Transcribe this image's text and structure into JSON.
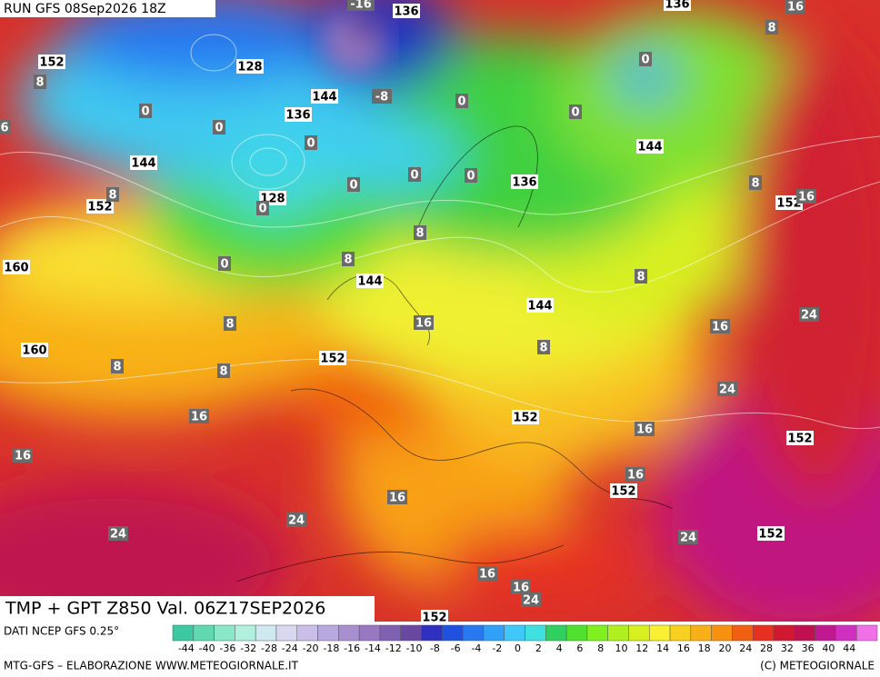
{
  "header": {
    "run": "RUN GFS 08Sep2026 18Z"
  },
  "map": {
    "title": "TMP + GPT Z850 Val. 06Z17SEP2026",
    "geopotential_labels": [
      152,
      128,
      144,
      136,
      144,
      152,
      128,
      136,
      144,
      152,
      160,
      144,
      144,
      160,
      152,
      152,
      152,
      152,
      152,
      136,
      136,
      152
    ],
    "temperature_labels": [
      -16,
      -8,
      0,
      0,
      0,
      0,
      0,
      0,
      0,
      0,
      0,
      0,
      0,
      8,
      8,
      8,
      8,
      8,
      8,
      8,
      8,
      8,
      8,
      8,
      16,
      16,
      16,
      16,
      16,
      16,
      16,
      16,
      16,
      16,
      16,
      24,
      24,
      24,
      24,
      24,
      24,
      6
    ]
  },
  "legend": {
    "source": "DATI NCEP GFS 0.25°",
    "ticks": [
      -44,
      -40,
      -36,
      -32,
      -28,
      -24,
      -20,
      -18,
      -16,
      -14,
      -12,
      -10,
      -8,
      -6,
      -4,
      -2,
      0,
      2,
      4,
      6,
      8,
      10,
      12,
      14,
      16,
      18,
      20,
      24,
      28,
      32,
      36,
      40,
      44
    ],
    "colors": [
      "#3cc8a0",
      "#60d8b0",
      "#88e8c8",
      "#b0f0dc",
      "#d0e8f0",
      "#d8d8f0",
      "#c8c0e8",
      "#b8a8e0",
      "#a890d0",
      "#9878c0",
      "#8060b0",
      "#6848a0",
      "#3030c0",
      "#2050e0",
      "#2878f0",
      "#30a0f8",
      "#40c8f8",
      "#40e0e0",
      "#30d060",
      "#50e030",
      "#80f020",
      "#b0f020",
      "#d8f020",
      "#f8f030",
      "#f8d020",
      "#f8b018",
      "#f89010",
      "#f06010",
      "#e83020",
      "#d01830",
      "#c01050",
      "#c01890",
      "#d030c0",
      "#f070e8"
    ]
  },
  "footer": {
    "left": "MTG-GFS – ELABORAZIONE WWW.METEOGIORNALE.IT",
    "right": "(C) METEOGIORNALE"
  }
}
